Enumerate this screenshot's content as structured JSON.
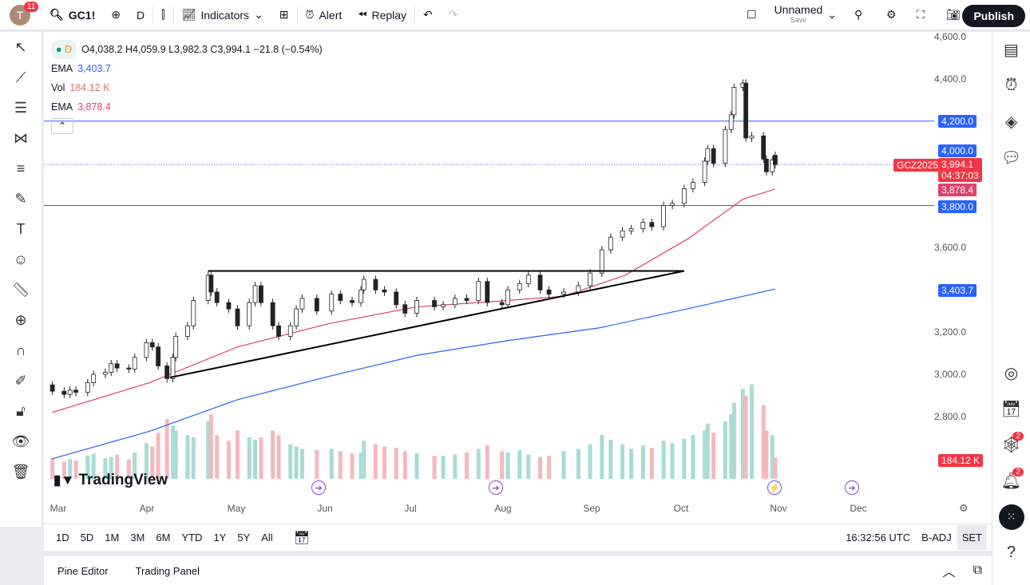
{
  "topbar": {
    "avatar": "T",
    "avatar_badge": "11",
    "symbol": "GC1!",
    "interval": "D",
    "indicators": "Indicators",
    "alert": "Alert",
    "replay": "Replay",
    "layout_name": "Unnamed",
    "layout_sub": "Save",
    "publish": "Publish"
  },
  "legend": {
    "ohlc": "O4,038.2  H4,059.9  L3,982.3  C3,994.1  −21.8 (−0.54%)",
    "interval": "D",
    "ema1_label": "EMA",
    "ema1_value": "3,403.7",
    "vol_label": "Vol",
    "vol_value": "184.12 K",
    "ema2_label": "EMA",
    "ema2_value": "3,878.4"
  },
  "price_axis": [
    "4,600.0",
    "4,400.0",
    "3,600.0",
    "3,200.0",
    "3,000.0",
    "2,800.0"
  ],
  "price_labels": {
    "h4200": "4,200.0",
    "h4000": "4,000.0",
    "last": "3,994.1",
    "countdown": "04:37:03",
    "ema50": "3,878.4",
    "h3800": "3,800.0",
    "ema200": "3,403.7",
    "vol": "184.12 K",
    "contract": "GCZ2025"
  },
  "time_axis": [
    "Mar",
    "Apr",
    "May",
    "Jun",
    "Jul",
    "Aug",
    "Sep",
    "Oct",
    "Nov",
    "Dec"
  ],
  "logo": "TradingView",
  "bottombar": {
    "ranges": [
      "1D",
      "5D",
      "1M",
      "3M",
      "6M",
      "YTD",
      "1Y",
      "5Y",
      "All"
    ],
    "clock": "16:32:56 UTC",
    "badj": "B-ADJ",
    "set": "SET"
  },
  "panel": {
    "pine": "Pine Editor",
    "trading": "Trading Panel"
  },
  "right_badges": [
    "2",
    "2"
  ],
  "colors": {
    "up": "#089981",
    "down": "#f23645",
    "ema50": "#e0416f",
    "ema200": "#2962ff",
    "hline": "#2962ff"
  },
  "series": {
    "candles": [
      [
        "02-27",
        2950,
        2920
      ],
      [
        "03-03",
        2920,
        2905
      ],
      [
        "03-05",
        2905,
        2925
      ],
      [
        "03-07",
        2925,
        2915
      ],
      [
        "03-11",
        2915,
        2960
      ],
      [
        "03-13",
        2960,
        3000
      ],
      [
        "03-17",
        3000,
        3010
      ],
      [
        "03-19",
        3010,
        3050
      ],
      [
        "03-21",
        3050,
        3030
      ],
      [
        "03-25",
        3030,
        3025
      ],
      [
        "03-27",
        3025,
        3080
      ],
      [
        "03-31",
        3080,
        3150
      ],
      [
        "04-02",
        3150,
        3130
      ],
      [
        "04-04",
        3130,
        3040
      ],
      [
        "04-07",
        3040,
        2980
      ],
      [
        "04-09",
        2980,
        3080
      ],
      [
        "04-10",
        3080,
        3180
      ],
      [
        "04-14",
        3180,
        3230
      ],
      [
        "04-16",
        3230,
        3350
      ],
      [
        "04-21",
        3350,
        3470
      ],
      [
        "04-22",
        3470,
        3390
      ],
      [
        "04-24",
        3390,
        3340
      ],
      [
        "04-28",
        3340,
        3310
      ],
      [
        "05-01",
        3310,
        3230
      ],
      [
        "05-05",
        3230,
        3340
      ],
      [
        "05-07",
        3340,
        3420
      ],
      [
        "05-09",
        3420,
        3340
      ],
      [
        "05-13",
        3340,
        3230
      ],
      [
        "05-15",
        3230,
        3180
      ],
      [
        "05-19",
        3180,
        3230
      ],
      [
        "05-21",
        3230,
        3310
      ],
      [
        "05-23",
        3310,
        3360
      ],
      [
        "05-28",
        3360,
        3300
      ],
      [
        "06-02",
        3300,
        3380
      ],
      [
        "06-05",
        3380,
        3350
      ],
      [
        "06-09",
        3350,
        3340
      ],
      [
        "06-12",
        3340,
        3400
      ],
      [
        "06-13",
        3400,
        3450
      ],
      [
        "06-17",
        3450,
        3400
      ],
      [
        "06-20",
        3400,
        3390
      ],
      [
        "06-24",
        3390,
        3330
      ],
      [
        "06-27",
        3330,
        3290
      ],
      [
        "07-01",
        3290,
        3350
      ],
      [
        "07-07",
        3350,
        3320
      ],
      [
        "07-10",
        3320,
        3330
      ],
      [
        "07-14",
        3330,
        3360
      ],
      [
        "07-18",
        3360,
        3350
      ],
      [
        "07-22",
        3350,
        3440
      ],
      [
        "07-25",
        3440,
        3340
      ],
      [
        "07-30",
        3340,
        3330
      ],
      [
        "08-01",
        3330,
        3400
      ],
      [
        "08-05",
        3400,
        3430
      ],
      [
        "08-08",
        3430,
        3470
      ],
      [
        "08-12",
        3470,
        3400
      ],
      [
        "08-15",
        3400,
        3380
      ],
      [
        "08-20",
        3380,
        3390
      ],
      [
        "08-25",
        3390,
        3420
      ],
      [
        "08-29",
        3420,
        3480
      ],
      [
        "09-02",
        3480,
        3590
      ],
      [
        "09-05",
        3590,
        3650
      ],
      [
        "09-09",
        3650,
        3680
      ],
      [
        "09-12",
        3680,
        3690
      ],
      [
        "09-16",
        3690,
        3720
      ],
      [
        "09-19",
        3720,
        3700
      ],
      [
        "09-23",
        3700,
        3800
      ],
      [
        "09-26",
        3800,
        3810
      ],
      [
        "09-30",
        3810,
        3880
      ],
      [
        "10-03",
        3880,
        3910
      ],
      [
        "10-07",
        3910,
        4010
      ],
      [
        "10-08",
        4010,
        4070
      ],
      [
        "10-10",
        4070,
        4000
      ],
      [
        "10-14",
        4000,
        4160
      ],
      [
        "10-16",
        4160,
        4230
      ],
      [
        "10-17",
        4230,
        4360
      ],
      [
        "10-20",
        4360,
        4380
      ],
      [
        "10-21",
        4380,
        4120
      ],
      [
        "10-23",
        4120,
        4130
      ],
      [
        "10-27",
        4130,
        4020
      ],
      [
        "10-28",
        4020,
        3960
      ],
      [
        "10-30",
        3960,
        4016
      ],
      [
        "10-31",
        4038,
        3994
      ]
    ],
    "volume_k": [
      180,
      150,
      170,
      160,
      200,
      220,
      180,
      190,
      210,
      170,
      230,
      310,
      280,
      400,
      520,
      460,
      420,
      380,
      360,
      500,
      560,
      380,
      330,
      420,
      360,
      340,
      360,
      420,
      380,
      300,
      280,
      260,
      250,
      260,
      240,
      220,
      230,
      330,
      300,
      280,
      270,
      240,
      220,
      200,
      200,
      210,
      230,
      260,
      290,
      240,
      230,
      250,
      210,
      190,
      200,
      240,
      260,
      300,
      380,
      340,
      300,
      260,
      290,
      270,
      330,
      310,
      350,
      380,
      420,
      480,
      400,
      500,
      560,
      660,
      780,
      720,
      820,
      640,
      420,
      380,
      184
    ],
    "ema50": [
      [
        "02-27",
        2820
      ],
      [
        "04-01",
        2960
      ],
      [
        "05-01",
        3130
      ],
      [
        "06-01",
        3240
      ],
      [
        "07-01",
        3320
      ],
      [
        "08-01",
        3350
      ],
      [
        "08-20",
        3370
      ],
      [
        "09-10",
        3470
      ],
      [
        "10-01",
        3640
      ],
      [
        "10-20",
        3830
      ],
      [
        "10-31",
        3878
      ]
    ],
    "ema200": [
      [
        "02-27",
        2600
      ],
      [
        "04-01",
        2730
      ],
      [
        "05-01",
        2880
      ],
      [
        "06-01",
        2990
      ],
      [
        "07-01",
        3090
      ],
      [
        "08-01",
        3160
      ],
      [
        "09-01",
        3220
      ],
      [
        "10-01",
        3310
      ],
      [
        "10-31",
        3404
      ]
    ]
  },
  "drawings": {
    "resistance": 3490,
    "support_start": [
      "04-08",
      2985
    ],
    "support_end": [
      "09-30",
      3490
    ],
    "resistance_start": "04-21",
    "resistance_end": "09-30"
  }
}
